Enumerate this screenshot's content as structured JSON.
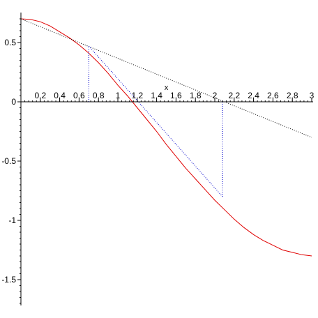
{
  "chart_data": {
    "type": "line",
    "xlabel": "x",
    "ylabel": "",
    "xlim": [
      0,
      3
    ],
    "ylim": [
      -1.7,
      0.75
    ],
    "x_ticks": [
      0.2,
      0.4,
      0.6,
      0.8,
      1,
      1.2,
      1.4,
      1.6,
      1.8,
      2,
      2.2,
      2.4,
      2.6,
      2.8,
      3
    ],
    "x_tick_labels": [
      "0.2",
      "0.4",
      "0.6",
      "0.8",
      "1",
      "1.2",
      "1.4",
      "1.6",
      "1.8",
      "2",
      "2.2",
      "2.4",
      "2.6",
      "2.8",
      "3"
    ],
    "y_ticks": [
      0.5,
      0,
      -0.5,
      -1,
      -1.5
    ],
    "y_tick_labels": [
      "0.5",
      "0",
      "-0.5",
      "-1",
      "-1.5"
    ],
    "series": [
      {
        "style": "solid",
        "color": "#e00000",
        "x": [
          0,
          0.1,
          0.2,
          0.3,
          0.4,
          0.5,
          0.6,
          0.7,
          0.8,
          0.9,
          1.0,
          1.1,
          1.2,
          1.3,
          1.4,
          1.5,
          1.6,
          1.7,
          1.8,
          1.9,
          2.0,
          2.1,
          2.2,
          2.3,
          2.4,
          2.5,
          2.6,
          2.7,
          2.8,
          2.9,
          3.0
        ],
        "y": [
          0.7,
          0.695,
          0.675,
          0.64,
          0.59,
          0.54,
          0.48,
          0.41,
          0.33,
          0.24,
          0.14,
          0.05,
          -0.05,
          -0.15,
          -0.25,
          -0.36,
          -0.46,
          -0.56,
          -0.65,
          -0.74,
          -0.83,
          -0.91,
          -0.99,
          -1.06,
          -1.12,
          -1.17,
          -1.21,
          -1.25,
          -1.27,
          -1.29,
          -1.3
        ]
      },
      {
        "style": "dotted",
        "color": "#000000",
        "x": [
          0,
          3
        ],
        "y": [
          0.7,
          -0.3
        ]
      },
      {
        "style": "dotted",
        "color": "#0000cc",
        "x": [
          0.7,
          2.08
        ],
        "y": [
          0.47,
          -0.8
        ]
      },
      {
        "style": "dotted",
        "color": "#0000cc",
        "x": [
          0.7,
          0.7
        ],
        "y": [
          0.0,
          0.47
        ]
      },
      {
        "style": "dotted",
        "color": "#0000cc",
        "x": [
          2.08,
          2.08
        ],
        "y": [
          0.0,
          -0.8
        ]
      }
    ]
  }
}
